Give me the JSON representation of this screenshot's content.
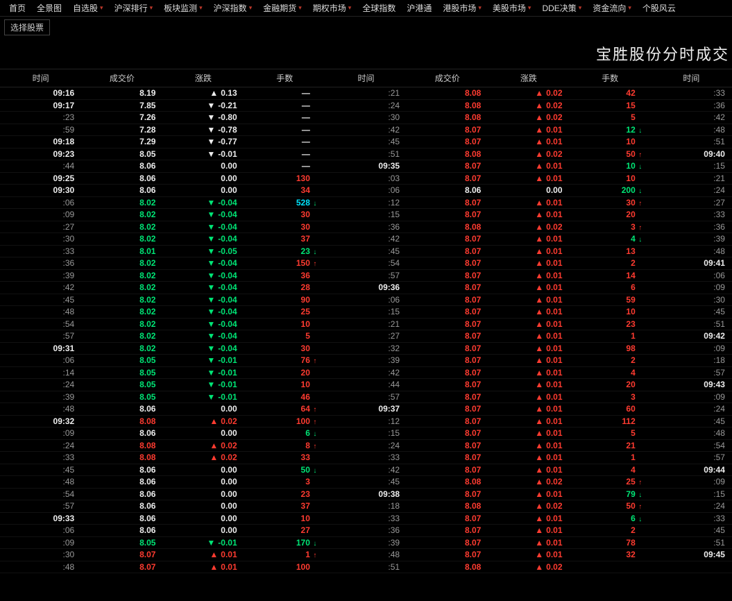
{
  "nav": [
    {
      "label": "首页",
      "dd": false
    },
    {
      "label": "全景图",
      "dd": false
    },
    {
      "label": "自选股",
      "dd": true
    },
    {
      "label": "沪深排行",
      "dd": true
    },
    {
      "label": "板块监测",
      "dd": true
    },
    {
      "label": "沪深指数",
      "dd": true
    },
    {
      "label": "金融期货",
      "dd": true
    },
    {
      "label": "期权市场",
      "dd": true
    },
    {
      "label": "全球指数",
      "dd": false
    },
    {
      "label": "沪港通",
      "dd": false
    },
    {
      "label": "港股市场",
      "dd": true
    },
    {
      "label": "美股市场",
      "dd": true
    },
    {
      "label": "DDE决策",
      "dd": true
    },
    {
      "label": "资金流向",
      "dd": true
    },
    {
      "label": "个股风云",
      "dd": false
    }
  ],
  "selector": "选择股票",
  "title": "宝胜股份分时成交",
  "headers": [
    "时间",
    "成交价",
    "涨跌",
    "手数",
    "时间",
    "成交价",
    "涨跌",
    "手数",
    "时间"
  ],
  "colors": {
    "bg": "#000000",
    "red": "#ff3b30",
    "green": "#00e676",
    "cyan": "#00e5ff",
    "white": "#eeeeee",
    "gray": "#999999"
  },
  "rows": [
    {
      "t1": "09:16",
      "t1b": true,
      "p1": "8.19",
      "p1c": "white",
      "d1": "0.13",
      "d1dir": "up",
      "d1c": "white",
      "v1": "—",
      "v1c": "dash",
      "va1": "",
      "t2": ":21",
      "t2b": false,
      "p2": "8.08",
      "p2c": "red",
      "d2": "0.02",
      "d2dir": "up",
      "d2c": "red",
      "v2": "42",
      "v2c": "red",
      "va2": "",
      "t3": ":33",
      "t3b": false
    },
    {
      "t1": "09:17",
      "t1b": true,
      "p1": "7.85",
      "p1c": "white",
      "d1": "-0.21",
      "d1dir": "down",
      "d1c": "white",
      "v1": "—",
      "v1c": "dash",
      "va1": "",
      "t2": ":24",
      "t2b": false,
      "p2": "8.08",
      "p2c": "red",
      "d2": "0.02",
      "d2dir": "up",
      "d2c": "red",
      "v2": "15",
      "v2c": "red",
      "va2": "",
      "t3": ":36",
      "t3b": false
    },
    {
      "t1": ":23",
      "t1b": false,
      "p1": "7.26",
      "p1c": "white",
      "d1": "-0.80",
      "d1dir": "down",
      "d1c": "white",
      "v1": "—",
      "v1c": "dash",
      "va1": "",
      "t2": ":30",
      "t2b": false,
      "p2": "8.08",
      "p2c": "red",
      "d2": "0.02",
      "d2dir": "up",
      "d2c": "red",
      "v2": "5",
      "v2c": "red",
      "va2": "",
      "t3": ":42",
      "t3b": false
    },
    {
      "t1": ":59",
      "t1b": false,
      "p1": "7.28",
      "p1c": "white",
      "d1": "-0.78",
      "d1dir": "down",
      "d1c": "white",
      "v1": "—",
      "v1c": "dash",
      "va1": "",
      "t2": ":42",
      "t2b": false,
      "p2": "8.07",
      "p2c": "red",
      "d2": "0.01",
      "d2dir": "up",
      "d2c": "red",
      "v2": "12",
      "v2c": "green",
      "va2": "down",
      "t3": ":48",
      "t3b": false
    },
    {
      "t1": "09:18",
      "t1b": true,
      "p1": "7.29",
      "p1c": "white",
      "d1": "-0.77",
      "d1dir": "down",
      "d1c": "white",
      "v1": "—",
      "v1c": "dash",
      "va1": "",
      "t2": ":45",
      "t2b": false,
      "p2": "8.07",
      "p2c": "red",
      "d2": "0.01",
      "d2dir": "up",
      "d2c": "red",
      "v2": "10",
      "v2c": "red",
      "va2": "",
      "t3": ":51",
      "t3b": false
    },
    {
      "t1": "09:23",
      "t1b": true,
      "p1": "8.05",
      "p1c": "white",
      "d1": "-0.01",
      "d1dir": "down",
      "d1c": "white",
      "v1": "—",
      "v1c": "dash",
      "va1": "",
      "t2": ":51",
      "t2b": false,
      "p2": "8.08",
      "p2c": "red",
      "d2": "0.02",
      "d2dir": "up",
      "d2c": "red",
      "v2": "50",
      "v2c": "red",
      "va2": "up",
      "t3": "09:40",
      "t3b": true
    },
    {
      "t1": ":44",
      "t1b": false,
      "p1": "8.06",
      "p1c": "white",
      "d1": "0.00",
      "d1dir": "",
      "d1c": "white",
      "v1": "—",
      "v1c": "dash",
      "va1": "",
      "t2": "09:35",
      "t2b": true,
      "p2": "8.07",
      "p2c": "red",
      "d2": "0.01",
      "d2dir": "up",
      "d2c": "red",
      "v2": "10",
      "v2c": "green",
      "va2": "down",
      "t3": ":15",
      "t3b": false
    },
    {
      "t1": "09:25",
      "t1b": true,
      "p1": "8.06",
      "p1c": "white",
      "d1": "0.00",
      "d1dir": "",
      "d1c": "white",
      "v1": "130",
      "v1c": "red",
      "va1": "",
      "t2": ":03",
      "t2b": false,
      "p2": "8.07",
      "p2c": "red",
      "d2": "0.01",
      "d2dir": "up",
      "d2c": "red",
      "v2": "10",
      "v2c": "red",
      "va2": "",
      "t3": ":21",
      "t3b": false
    },
    {
      "t1": "09:30",
      "t1b": true,
      "p1": "8.06",
      "p1c": "white",
      "d1": "0.00",
      "d1dir": "",
      "d1c": "white",
      "v1": "34",
      "v1c": "red",
      "va1": "",
      "t2": ":06",
      "t2b": false,
      "p2": "8.06",
      "p2c": "white",
      "d2": "0.00",
      "d2dir": "",
      "d2c": "white",
      "v2": "200",
      "v2c": "green",
      "va2": "down",
      "t3": ":24",
      "t3b": false
    },
    {
      "t1": ":06",
      "t1b": false,
      "p1": "8.02",
      "p1c": "green",
      "d1": "-0.04",
      "d1dir": "down",
      "d1c": "green",
      "v1": "528",
      "v1c": "cyan",
      "va1": "down",
      "t2": ":12",
      "t2b": false,
      "p2": "8.07",
      "p2c": "red",
      "d2": "0.01",
      "d2dir": "up",
      "d2c": "red",
      "v2": "30",
      "v2c": "red",
      "va2": "up",
      "t3": ":27",
      "t3b": false
    },
    {
      "t1": ":09",
      "t1b": false,
      "p1": "8.02",
      "p1c": "green",
      "d1": "-0.04",
      "d1dir": "down",
      "d1c": "green",
      "v1": "30",
      "v1c": "red",
      "va1": "",
      "t2": ":15",
      "t2b": false,
      "p2": "8.07",
      "p2c": "red",
      "d2": "0.01",
      "d2dir": "up",
      "d2c": "red",
      "v2": "20",
      "v2c": "red",
      "va2": "",
      "t3": ":33",
      "t3b": false
    },
    {
      "t1": ":27",
      "t1b": false,
      "p1": "8.02",
      "p1c": "green",
      "d1": "-0.04",
      "d1dir": "down",
      "d1c": "green",
      "v1": "30",
      "v1c": "red",
      "va1": "",
      "t2": ":36",
      "t2b": false,
      "p2": "8.08",
      "p2c": "red",
      "d2": "0.02",
      "d2dir": "up",
      "d2c": "red",
      "v2": "3",
      "v2c": "red",
      "va2": "up",
      "t3": ":36",
      "t3b": false
    },
    {
      "t1": ":30",
      "t1b": false,
      "p1": "8.02",
      "p1c": "green",
      "d1": "-0.04",
      "d1dir": "down",
      "d1c": "green",
      "v1": "37",
      "v1c": "red",
      "va1": "",
      "t2": ":42",
      "t2b": false,
      "p2": "8.07",
      "p2c": "red",
      "d2": "0.01",
      "d2dir": "up",
      "d2c": "red",
      "v2": "4",
      "v2c": "green",
      "va2": "down",
      "t3": ":39",
      "t3b": false
    },
    {
      "t1": ":33",
      "t1b": false,
      "p1": "8.01",
      "p1c": "green",
      "d1": "-0.05",
      "d1dir": "down",
      "d1c": "green",
      "v1": "23",
      "v1c": "green",
      "va1": "down",
      "t2": ":45",
      "t2b": false,
      "p2": "8.07",
      "p2c": "red",
      "d2": "0.01",
      "d2dir": "up",
      "d2c": "red",
      "v2": "13",
      "v2c": "red",
      "va2": "",
      "t3": ":48",
      "t3b": false
    },
    {
      "t1": ":36",
      "t1b": false,
      "p1": "8.02",
      "p1c": "green",
      "d1": "-0.04",
      "d1dir": "down",
      "d1c": "green",
      "v1": "150",
      "v1c": "red",
      "va1": "up",
      "t2": ":54",
      "t2b": false,
      "p2": "8.07",
      "p2c": "red",
      "d2": "0.01",
      "d2dir": "up",
      "d2c": "red",
      "v2": "2",
      "v2c": "red",
      "va2": "",
      "t3": "09:41",
      "t3b": true
    },
    {
      "t1": ":39",
      "t1b": false,
      "p1": "8.02",
      "p1c": "green",
      "d1": "-0.04",
      "d1dir": "down",
      "d1c": "green",
      "v1": "36",
      "v1c": "red",
      "va1": "",
      "t2": ":57",
      "t2b": false,
      "p2": "8.07",
      "p2c": "red",
      "d2": "0.01",
      "d2dir": "up",
      "d2c": "red",
      "v2": "14",
      "v2c": "red",
      "va2": "",
      "t3": ":06",
      "t3b": false
    },
    {
      "t1": ":42",
      "t1b": false,
      "p1": "8.02",
      "p1c": "green",
      "d1": "-0.04",
      "d1dir": "down",
      "d1c": "green",
      "v1": "28",
      "v1c": "red",
      "va1": "",
      "t2": "09:36",
      "t2b": true,
      "p2": "8.07",
      "p2c": "red",
      "d2": "0.01",
      "d2dir": "up",
      "d2c": "red",
      "v2": "6",
      "v2c": "red",
      "va2": "",
      "t3": ":09",
      "t3b": false
    },
    {
      "t1": ":45",
      "t1b": false,
      "p1": "8.02",
      "p1c": "green",
      "d1": "-0.04",
      "d1dir": "down",
      "d1c": "green",
      "v1": "90",
      "v1c": "red",
      "va1": "",
      "t2": ":06",
      "t2b": false,
      "p2": "8.07",
      "p2c": "red",
      "d2": "0.01",
      "d2dir": "up",
      "d2c": "red",
      "v2": "59",
      "v2c": "red",
      "va2": "",
      "t3": ":30",
      "t3b": false
    },
    {
      "t1": ":48",
      "t1b": false,
      "p1": "8.02",
      "p1c": "green",
      "d1": "-0.04",
      "d1dir": "down",
      "d1c": "green",
      "v1": "25",
      "v1c": "red",
      "va1": "",
      "t2": ":15",
      "t2b": false,
      "p2": "8.07",
      "p2c": "red",
      "d2": "0.01",
      "d2dir": "up",
      "d2c": "red",
      "v2": "10",
      "v2c": "red",
      "va2": "",
      "t3": ":45",
      "t3b": false
    },
    {
      "t1": ":54",
      "t1b": false,
      "p1": "8.02",
      "p1c": "green",
      "d1": "-0.04",
      "d1dir": "down",
      "d1c": "green",
      "v1": "10",
      "v1c": "red",
      "va1": "",
      "t2": ":21",
      "t2b": false,
      "p2": "8.07",
      "p2c": "red",
      "d2": "0.01",
      "d2dir": "up",
      "d2c": "red",
      "v2": "23",
      "v2c": "red",
      "va2": "",
      "t3": ":51",
      "t3b": false
    },
    {
      "t1": ":57",
      "t1b": false,
      "p1": "8.02",
      "p1c": "green",
      "d1": "-0.04",
      "d1dir": "down",
      "d1c": "green",
      "v1": "5",
      "v1c": "red",
      "va1": "",
      "t2": ":27",
      "t2b": false,
      "p2": "8.07",
      "p2c": "red",
      "d2": "0.01",
      "d2dir": "up",
      "d2c": "red",
      "v2": "1",
      "v2c": "red",
      "va2": "",
      "t3": "09:42",
      "t3b": true
    },
    {
      "t1": "09:31",
      "t1b": true,
      "p1": "8.02",
      "p1c": "green",
      "d1": "-0.04",
      "d1dir": "down",
      "d1c": "green",
      "v1": "30",
      "v1c": "red",
      "va1": "",
      "t2": ":32",
      "t2b": false,
      "p2": "8.07",
      "p2c": "red",
      "d2": "0.01",
      "d2dir": "up",
      "d2c": "red",
      "v2": "98",
      "v2c": "red",
      "va2": "",
      "t3": ":09",
      "t3b": false
    },
    {
      "t1": ":06",
      "t1b": false,
      "p1": "8.05",
      "p1c": "green",
      "d1": "-0.01",
      "d1dir": "down",
      "d1c": "green",
      "v1": "76",
      "v1c": "red",
      "va1": "up",
      "t2": ":39",
      "t2b": false,
      "p2": "8.07",
      "p2c": "red",
      "d2": "0.01",
      "d2dir": "up",
      "d2c": "red",
      "v2": "2",
      "v2c": "red",
      "va2": "",
      "t3": ":18",
      "t3b": false
    },
    {
      "t1": ":14",
      "t1b": false,
      "p1": "8.05",
      "p1c": "green",
      "d1": "-0.01",
      "d1dir": "down",
      "d1c": "green",
      "v1": "20",
      "v1c": "red",
      "va1": "",
      "t2": ":42",
      "t2b": false,
      "p2": "8.07",
      "p2c": "red",
      "d2": "0.01",
      "d2dir": "up",
      "d2c": "red",
      "v2": "4",
      "v2c": "red",
      "va2": "",
      "t3": ":57",
      "t3b": false
    },
    {
      "t1": ":24",
      "t1b": false,
      "p1": "8.05",
      "p1c": "green",
      "d1": "-0.01",
      "d1dir": "down",
      "d1c": "green",
      "v1": "10",
      "v1c": "red",
      "va1": "",
      "t2": ":44",
      "t2b": false,
      "p2": "8.07",
      "p2c": "red",
      "d2": "0.01",
      "d2dir": "up",
      "d2c": "red",
      "v2": "20",
      "v2c": "red",
      "va2": "",
      "t3": "09:43",
      "t3b": true
    },
    {
      "t1": ":39",
      "t1b": false,
      "p1": "8.05",
      "p1c": "green",
      "d1": "-0.01",
      "d1dir": "down",
      "d1c": "green",
      "v1": "46",
      "v1c": "red",
      "va1": "",
      "t2": ":57",
      "t2b": false,
      "p2": "8.07",
      "p2c": "red",
      "d2": "0.01",
      "d2dir": "up",
      "d2c": "red",
      "v2": "3",
      "v2c": "red",
      "va2": "",
      "t3": ":09",
      "t3b": false
    },
    {
      "t1": ":48",
      "t1b": false,
      "p1": "8.06",
      "p1c": "white",
      "d1": "0.00",
      "d1dir": "",
      "d1c": "white",
      "v1": "64",
      "v1c": "red",
      "va1": "up",
      "t2": "09:37",
      "t2b": true,
      "p2": "8.07",
      "p2c": "red",
      "d2": "0.01",
      "d2dir": "up",
      "d2c": "red",
      "v2": "60",
      "v2c": "red",
      "va2": "",
      "t3": ":24",
      "t3b": false
    },
    {
      "t1": "09:32",
      "t1b": true,
      "p1": "8.08",
      "p1c": "red",
      "d1": "0.02",
      "d1dir": "up",
      "d1c": "red",
      "v1": "100",
      "v1c": "red",
      "va1": "up",
      "t2": ":12",
      "t2b": false,
      "p2": "8.07",
      "p2c": "red",
      "d2": "0.01",
      "d2dir": "up",
      "d2c": "red",
      "v2": "112",
      "v2c": "red",
      "va2": "",
      "t3": ":45",
      "t3b": false
    },
    {
      "t1": ":09",
      "t1b": false,
      "p1": "8.06",
      "p1c": "white",
      "d1": "0.00",
      "d1dir": "",
      "d1c": "white",
      "v1": "6",
      "v1c": "green",
      "va1": "down",
      "t2": ":15",
      "t2b": false,
      "p2": "8.07",
      "p2c": "red",
      "d2": "0.01",
      "d2dir": "up",
      "d2c": "red",
      "v2": "5",
      "v2c": "red",
      "va2": "",
      "t3": ":48",
      "t3b": false
    },
    {
      "t1": ":24",
      "t1b": false,
      "p1": "8.08",
      "p1c": "red",
      "d1": "0.02",
      "d1dir": "up",
      "d1c": "red",
      "v1": "8",
      "v1c": "red",
      "va1": "up",
      "t2": ":24",
      "t2b": false,
      "p2": "8.07",
      "p2c": "red",
      "d2": "0.01",
      "d2dir": "up",
      "d2c": "red",
      "v2": "21",
      "v2c": "red",
      "va2": "",
      "t3": ":54",
      "t3b": false
    },
    {
      "t1": ":33",
      "t1b": false,
      "p1": "8.08",
      "p1c": "red",
      "d1": "0.02",
      "d1dir": "up",
      "d1c": "red",
      "v1": "33",
      "v1c": "red",
      "va1": "",
      "t2": ":33",
      "t2b": false,
      "p2": "8.07",
      "p2c": "red",
      "d2": "0.01",
      "d2dir": "up",
      "d2c": "red",
      "v2": "1",
      "v2c": "red",
      "va2": "",
      "t3": ":57",
      "t3b": false
    },
    {
      "t1": ":45",
      "t1b": false,
      "p1": "8.06",
      "p1c": "white",
      "d1": "0.00",
      "d1dir": "",
      "d1c": "white",
      "v1": "50",
      "v1c": "green",
      "va1": "down",
      "t2": ":42",
      "t2b": false,
      "p2": "8.07",
      "p2c": "red",
      "d2": "0.01",
      "d2dir": "up",
      "d2c": "red",
      "v2": "4",
      "v2c": "red",
      "va2": "",
      "t3": "09:44",
      "t3b": true
    },
    {
      "t1": ":48",
      "t1b": false,
      "p1": "8.06",
      "p1c": "white",
      "d1": "0.00",
      "d1dir": "",
      "d1c": "white",
      "v1": "3",
      "v1c": "red",
      "va1": "",
      "t2": ":45",
      "t2b": false,
      "p2": "8.08",
      "p2c": "red",
      "d2": "0.02",
      "d2dir": "up",
      "d2c": "red",
      "v2": "25",
      "v2c": "red",
      "va2": "up",
      "t3": ":09",
      "t3b": false
    },
    {
      "t1": ":54",
      "t1b": false,
      "p1": "8.06",
      "p1c": "white",
      "d1": "0.00",
      "d1dir": "",
      "d1c": "white",
      "v1": "23",
      "v1c": "red",
      "va1": "",
      "t2": "09:38",
      "t2b": true,
      "p2": "8.07",
      "p2c": "red",
      "d2": "0.01",
      "d2dir": "up",
      "d2c": "red",
      "v2": "79",
      "v2c": "green",
      "va2": "down",
      "t3": ":15",
      "t3b": false
    },
    {
      "t1": ":57",
      "t1b": false,
      "p1": "8.06",
      "p1c": "white",
      "d1": "0.00",
      "d1dir": "",
      "d1c": "white",
      "v1": "37",
      "v1c": "red",
      "va1": "",
      "t2": ":18",
      "t2b": false,
      "p2": "8.08",
      "p2c": "red",
      "d2": "0.02",
      "d2dir": "up",
      "d2c": "red",
      "v2": "50",
      "v2c": "red",
      "va2": "up",
      "t3": ":24",
      "t3b": false
    },
    {
      "t1": "09:33",
      "t1b": true,
      "p1": "8.06",
      "p1c": "white",
      "d1": "0.00",
      "d1dir": "",
      "d1c": "white",
      "v1": "10",
      "v1c": "red",
      "va1": "",
      "t2": ":33",
      "t2b": false,
      "p2": "8.07",
      "p2c": "red",
      "d2": "0.01",
      "d2dir": "up",
      "d2c": "red",
      "v2": "6",
      "v2c": "green",
      "va2": "down",
      "t3": ":33",
      "t3b": false
    },
    {
      "t1": ":06",
      "t1b": false,
      "p1": "8.06",
      "p1c": "white",
      "d1": "0.00",
      "d1dir": "",
      "d1c": "white",
      "v1": "27",
      "v1c": "red",
      "va1": "",
      "t2": ":36",
      "t2b": false,
      "p2": "8.07",
      "p2c": "red",
      "d2": "0.01",
      "d2dir": "up",
      "d2c": "red",
      "v2": "2",
      "v2c": "red",
      "va2": "",
      "t3": ":45",
      "t3b": false
    },
    {
      "t1": ":09",
      "t1b": false,
      "p1": "8.05",
      "p1c": "green",
      "d1": "-0.01",
      "d1dir": "down",
      "d1c": "green",
      "v1": "170",
      "v1c": "green",
      "va1": "down",
      "t2": ":39",
      "t2b": false,
      "p2": "8.07",
      "p2c": "red",
      "d2": "0.01",
      "d2dir": "up",
      "d2c": "red",
      "v2": "78",
      "v2c": "red",
      "va2": "",
      "t3": ":51",
      "t3b": false
    },
    {
      "t1": ":30",
      "t1b": false,
      "p1": "8.07",
      "p1c": "red",
      "d1": "0.01",
      "d1dir": "up",
      "d1c": "red",
      "v1": "1",
      "v1c": "red",
      "va1": "up",
      "t2": ":48",
      "t2b": false,
      "p2": "8.07",
      "p2c": "red",
      "d2": "0.01",
      "d2dir": "up",
      "d2c": "red",
      "v2": "32",
      "v2c": "red",
      "va2": "",
      "t3": "09:45",
      "t3b": true
    },
    {
      "t1": ":48",
      "t1b": false,
      "p1": "8.07",
      "p1c": "red",
      "d1": "0.01",
      "d1dir": "up",
      "d1c": "red",
      "v1": "100",
      "v1c": "red",
      "va1": "",
      "t2": ":51",
      "t2b": false,
      "p2": "8.08",
      "p2c": "red",
      "d2": "0.02",
      "d2dir": "up",
      "d2c": "red",
      "v2": "",
      "v2c": "",
      "va2": "",
      "t3": "",
      "t3b": false
    }
  ]
}
